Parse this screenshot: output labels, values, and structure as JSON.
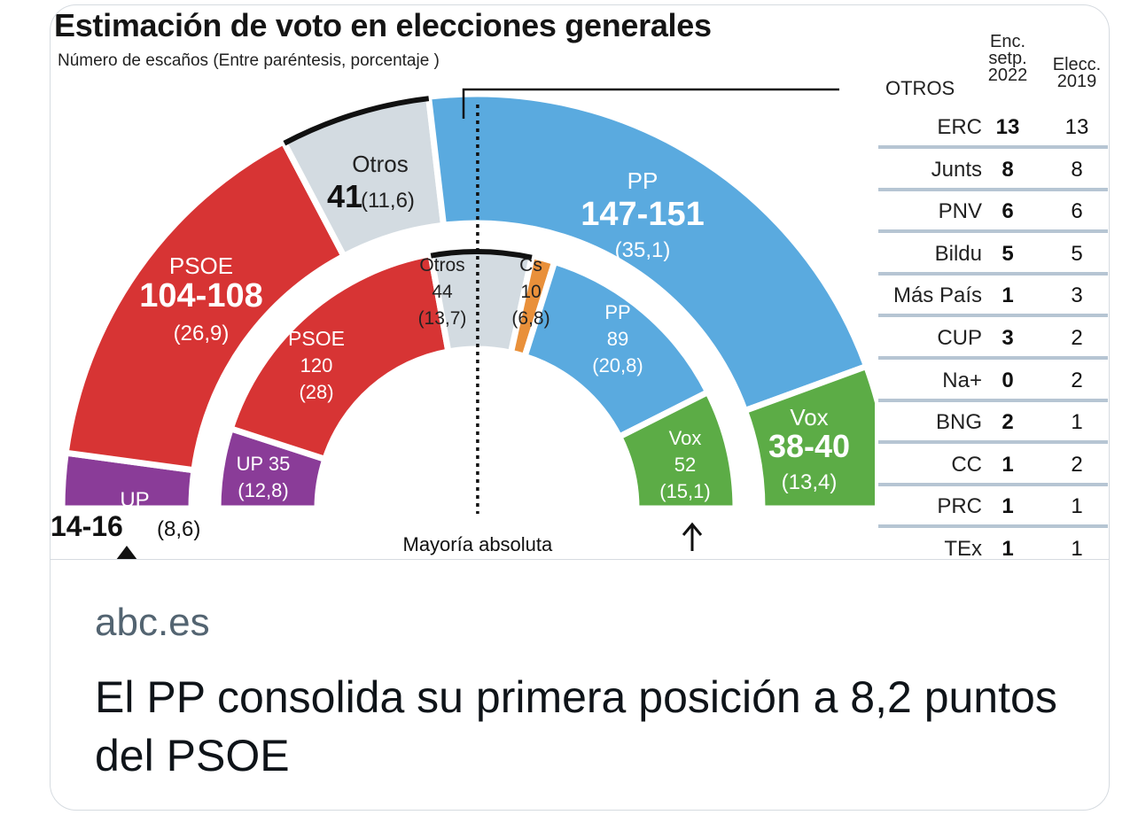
{
  "card": {
    "source": "abc.es",
    "headline": "El PP consolida su primera posición a 8,2 puntos del PSOE"
  },
  "chart_data": {
    "type": "hemicycle",
    "title": "Estimación de voto en elecciones generales",
    "subtitle": "Número de escaños (Entre paréntesis, porcentaje )",
    "majority_label": "Mayoría absoluta",
    "majority_seats": 176,
    "total_seats": 350,
    "colors": {
      "PSOE": "#d73434",
      "UP": "#8a3c98",
      "PP": "#5aaadf",
      "Vox": "#5cac46",
      "Cs": "#e9903a",
      "Otros": "#d3dbe1"
    },
    "rings": [
      {
        "name": "Enc. setp. 2022",
        "parties": [
          {
            "party": "UP",
            "seats_min": 14,
            "seats_max": 16,
            "seats_label": "14-16",
            "pct": "(8,6)",
            "color": "#8a3c98"
          },
          {
            "party": "PSOE",
            "seats_min": 104,
            "seats_max": 108,
            "seats_label": "104-108",
            "pct": "(26,9)",
            "color": "#d73434"
          },
          {
            "party": "Otros",
            "seats": 41,
            "seats_label": "41",
            "pct": "(11,6)",
            "color": "#d3dbe1"
          },
          {
            "party": "PP",
            "seats_min": 147,
            "seats_max": 151,
            "seats_label": "147-151",
            "pct": "(35,1)",
            "color": "#5aaadf"
          },
          {
            "party": "Vox",
            "seats_min": 38,
            "seats_max": 40,
            "seats_label": "38-40",
            "pct": "(13,4)",
            "color": "#5cac46"
          }
        ]
      },
      {
        "name": "Elecc. 2019",
        "parties": [
          {
            "party": "UP",
            "seats": 35,
            "seats_label": "35",
            "pct": "(12,8)",
            "color": "#8a3c98"
          },
          {
            "party": "PSOE",
            "seats": 120,
            "seats_label": "120",
            "pct": "(28)",
            "color": "#d73434"
          },
          {
            "party": "Otros",
            "seats": 44,
            "seats_label": "44",
            "pct": "(13,7)",
            "color": "#d3dbe1"
          },
          {
            "party": "Cs",
            "seats": 10,
            "seats_label": "10",
            "pct": "(6,8)",
            "color": "#e9903a"
          },
          {
            "party": "PP",
            "seats": 89,
            "seats_label": "89",
            "pct": "(20,8)",
            "color": "#5aaadf"
          },
          {
            "party": "Vox",
            "seats": 52,
            "seats_label": "52",
            "pct": "(15,1)",
            "color": "#5cac46"
          }
        ]
      }
    ],
    "otros_table": {
      "header": [
        "OTROS",
        "Enc. setp. 2022",
        "Elecc. 2019"
      ],
      "col_enc_lines": [
        "Enc.",
        "setp.",
        "2022"
      ],
      "col_elec_lines": [
        "Elecc.",
        "2019"
      ],
      "rows": [
        {
          "name": "ERC",
          "enc": "13",
          "elec": "13"
        },
        {
          "name": "Junts",
          "enc": "8",
          "elec": "8"
        },
        {
          "name": "PNV",
          "enc": "6",
          "elec": "6"
        },
        {
          "name": "Bildu",
          "enc": "5",
          "elec": "5"
        },
        {
          "name": "Más País",
          "enc": "1",
          "elec": "3"
        },
        {
          "name": "CUP",
          "enc": "3",
          "elec": "2"
        },
        {
          "name": "Na+",
          "enc": "0",
          "elec": "2"
        },
        {
          "name": "BNG",
          "enc": "2",
          "elec": "1"
        },
        {
          "name": "CC",
          "enc": "1",
          "elec": "2"
        },
        {
          "name": "PRC",
          "enc": "1",
          "elec": "1"
        },
        {
          "name": "TEx",
          "enc": "1",
          "elec": "1"
        }
      ]
    }
  }
}
